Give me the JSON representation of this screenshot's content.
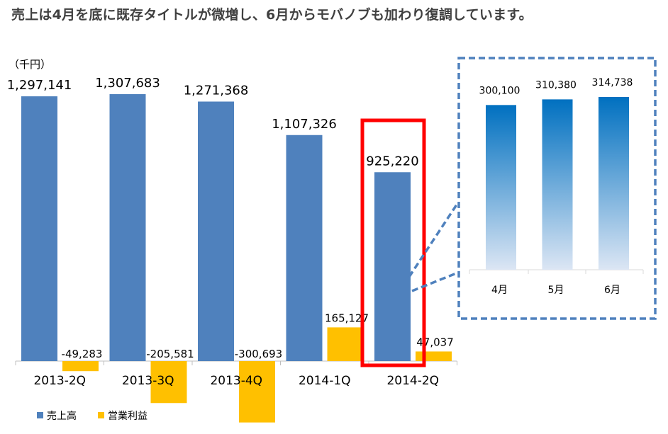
{
  "headline": "売上は4月を底に既存タイトルが微増し、6月からモバノブも加わり復調しています。",
  "chart_data": [
    {
      "type": "bar",
      "unit_label": "（千円）",
      "categories": [
        "2013-2Q",
        "2013-3Q",
        "2013-4Q",
        "2014-1Q",
        "2014-2Q"
      ],
      "series": [
        {
          "name": "売上高",
          "color": "#4f81bd",
          "values": [
            1297141,
            1307683,
            1271368,
            1107326,
            925220
          ],
          "labels": [
            "1,297,141",
            "1,307,683",
            "1,271,368",
            "1,107,326",
            "925,220"
          ]
        },
        {
          "name": "営業利益",
          "color": "#ffc000",
          "values": [
            -49283,
            -205581,
            -300693,
            165127,
            47037
          ],
          "labels": [
            "-49,283",
            "-205,581",
            "-300,693",
            "165,127",
            "47,037"
          ]
        }
      ],
      "highlight": {
        "category": "2014-2Q",
        "color": "#ff0000"
      },
      "legend": "bottom-left"
    },
    {
      "type": "bar",
      "categories": [
        "4月",
        "5月",
        "6月"
      ],
      "series": [
        {
          "name": "",
          "color_top": "#0070c0",
          "color_bottom": "#dce6f4",
          "values": [
            300100,
            310380,
            314738
          ],
          "labels": [
            "300,100",
            "310,380",
            "314,738"
          ]
        }
      ],
      "frame_color": "#4f81bd"
    }
  ]
}
